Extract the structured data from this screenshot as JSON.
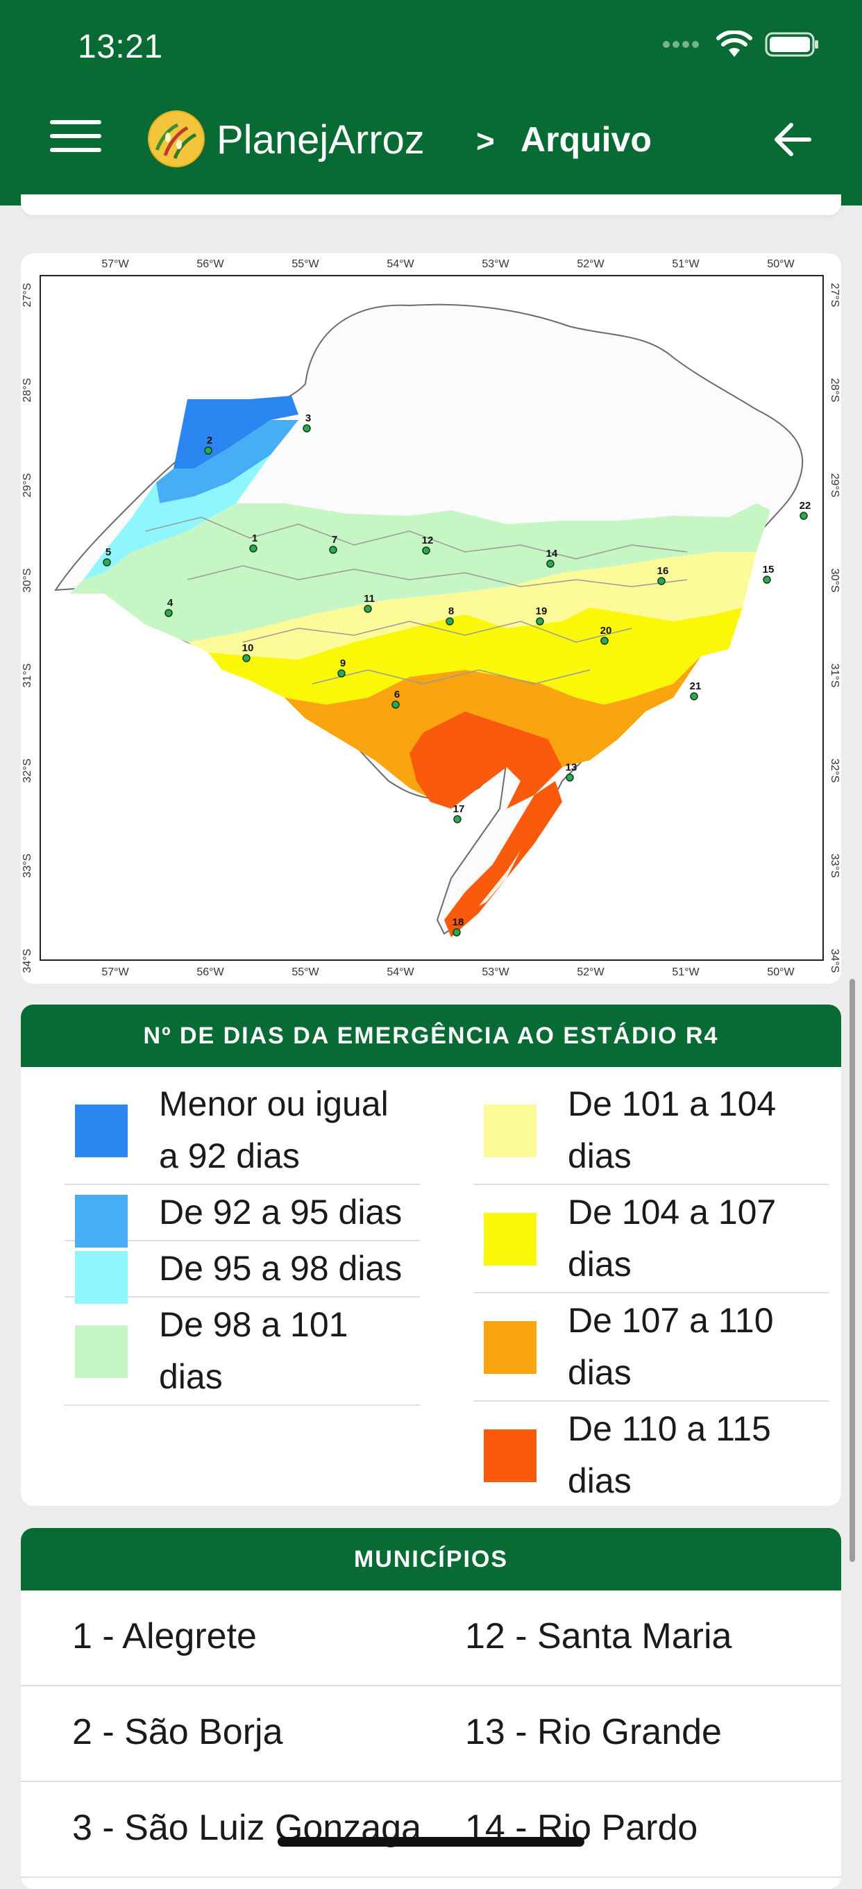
{
  "status": {
    "time": "13:21"
  },
  "header": {
    "brand": "PlanejArroz",
    "separator": ">",
    "section": "Arquivo"
  },
  "colors": {
    "brand_green": "#086b33"
  },
  "map": {
    "top_ticks": [
      "57°W",
      "56°W",
      "55°W",
      "54°W",
      "53°W",
      "52°W",
      "51°W",
      "50°W"
    ],
    "side_ticks": [
      "27°S",
      "28°S",
      "29°S",
      "30°S",
      "31°S",
      "32°S",
      "33°S",
      "34°S"
    ],
    "points": [
      "1",
      "2",
      "3",
      "4",
      "5",
      "6",
      "7",
      "8",
      "9",
      "10",
      "11",
      "12",
      "13",
      "14",
      "15",
      "16",
      "17",
      "18",
      "19",
      "20",
      "21",
      "22"
    ]
  },
  "legend": {
    "title": "Nº DE DIAS DA EMERGÊNCIA AO ESTÁDIO R4",
    "left": [
      {
        "label": "Menor ou igual a 92 dias",
        "color": "#2b86f2"
      },
      {
        "label": "De 92 a 95 dias",
        "color": "#47aef6"
      },
      {
        "label": "De 95 a 98 dias",
        "color": "#8ff6fd"
      },
      {
        "label": "De 98 a 101 dias",
        "color": "#c6f6c3"
      }
    ],
    "right": [
      {
        "label": "De 101 a 104 dias",
        "color": "#fdfa9a"
      },
      {
        "label": "De 104 a 107 dias",
        "color": "#fbf807"
      },
      {
        "label": "De 107 a 110 dias",
        "color": "#faa510"
      },
      {
        "label": "De 110 a 115 dias",
        "color": "#fa5a0b"
      }
    ]
  },
  "municipios": {
    "title": "MUNICÍPIOS",
    "rows": [
      {
        "left": "1 - Alegrete",
        "right": "12 - Santa Maria"
      },
      {
        "left": "2 - São Borja",
        "right": "13 - Rio Grande"
      },
      {
        "left": "3 - São Luiz Gonzaga",
        "right": "14 - Rio Pardo"
      }
    ]
  }
}
